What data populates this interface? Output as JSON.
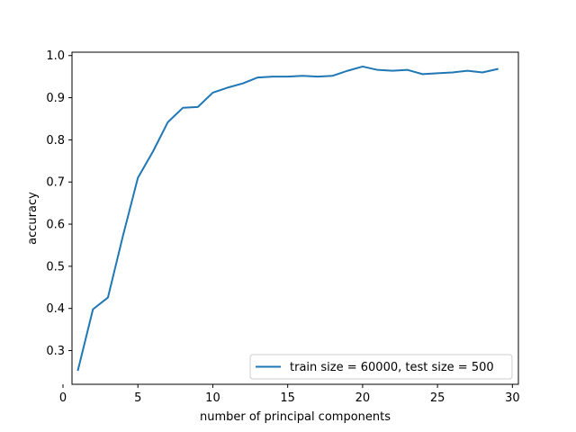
{
  "chart_data": {
    "type": "line",
    "title": "",
    "xlabel": "number of principal components",
    "ylabel": "accuracy",
    "xlim": [
      0.6,
      30.4
    ],
    "ylim": [
      0.22,
      1.008
    ],
    "xticks": [
      0,
      5,
      10,
      15,
      20,
      25,
      30
    ],
    "yticks": [
      0.3,
      0.4,
      0.5,
      0.6,
      0.7,
      0.8,
      0.9,
      1.0
    ],
    "xtick_labels": [
      "0",
      "5",
      "10",
      "15",
      "20",
      "25",
      "30"
    ],
    "ytick_labels": [
      "0.3",
      "0.4",
      "0.5",
      "0.6",
      "0.7",
      "0.8",
      "0.9",
      "1.0"
    ],
    "grid": false,
    "legend_position": "lower-right",
    "series": [
      {
        "name": "train size = 60000, test size = 500",
        "color": "#1f77b4",
        "x": [
          1,
          2,
          3,
          4,
          5,
          6,
          7,
          8,
          9,
          10,
          11,
          12,
          13,
          14,
          15,
          16,
          17,
          18,
          19,
          20,
          21,
          22,
          23,
          24,
          25,
          26,
          27,
          28,
          29
        ],
        "y": [
          0.254,
          0.398,
          0.426,
          0.572,
          0.71,
          0.772,
          0.842,
          0.876,
          0.878,
          0.912,
          0.924,
          0.934,
          0.948,
          0.95,
          0.95,
          0.952,
          0.95,
          0.952,
          0.964,
          0.974,
          0.966,
          0.964,
          0.966,
          0.956,
          0.958,
          0.96,
          0.964,
          0.96,
          0.968
        ]
      }
    ]
  }
}
